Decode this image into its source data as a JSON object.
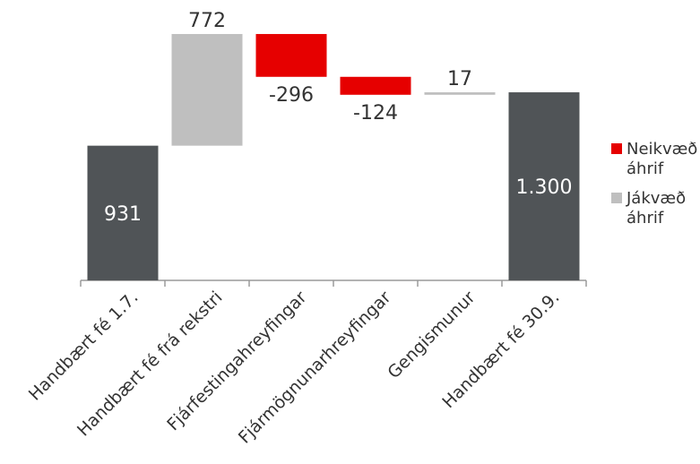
{
  "chart_data": {
    "type": "bar",
    "subtype": "waterfall",
    "categories": [
      "Handbært fé 1.7.",
      "Handbært fé frá rekstri",
      "Fjárfestingahreyfingar",
      "Fjármögnunarhreyfingar",
      "Gengismunur",
      "Handbært fé 30.9."
    ],
    "values": [
      931,
      772,
      -296,
      -124,
      17,
      1300
    ],
    "value_labels": [
      "931",
      "772",
      "-296",
      "-124",
      "17",
      "1.300"
    ],
    "bar_kinds": [
      "total",
      "positive",
      "negative",
      "negative",
      "positive",
      "total"
    ],
    "ylim": [
      0,
      1800
    ],
    "grid": false,
    "colors": {
      "total": "#505457",
      "positive": "#bfbfbf",
      "negative": "#e60000",
      "axis": "#9a9a9a"
    },
    "legend": {
      "placement": "right",
      "entries": [
        {
          "kind": "negative",
          "lines": [
            "Neikvæð",
            "áhrif"
          ]
        },
        {
          "kind": "positive",
          "lines": [
            "Jákvæð",
            "áhrif"
          ]
        }
      ]
    }
  }
}
